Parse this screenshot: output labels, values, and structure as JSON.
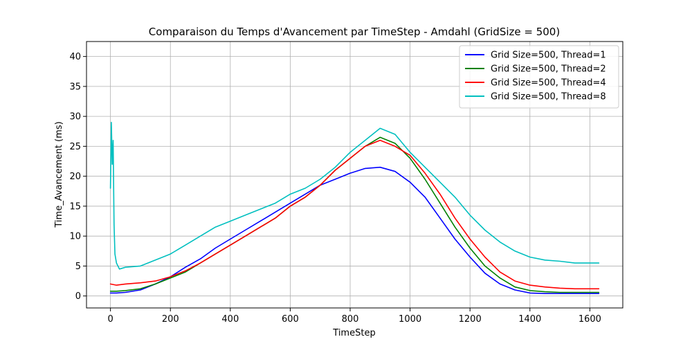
{
  "chart_data": {
    "type": "line",
    "title": "Comparaison du Temps d'Avancement par TimeStep - Amdahl (GridSize = 500)",
    "xlabel": "TimeStep",
    "ylabel": "Time_Avancement (ms)",
    "xlim": [
      -80,
      1710
    ],
    "ylim": [
      -2,
      42.5
    ],
    "xticks": [
      0,
      200,
      400,
      600,
      800,
      1000,
      1200,
      1400,
      1600
    ],
    "yticks": [
      0,
      5,
      10,
      15,
      20,
      25,
      30,
      35,
      40
    ],
    "xtick_labels": [
      "0",
      "200",
      "400",
      "600",
      "800",
      "1000",
      "1200",
      "1400",
      "1600"
    ],
    "ytick_labels": [
      "0",
      "5",
      "10",
      "15",
      "20",
      "25",
      "30",
      "35",
      "40"
    ],
    "grid": true,
    "legend_position": "top-right",
    "series": [
      {
        "name": "Grid Size=500, Thread=1",
        "color": "#0000ff",
        "x": [
          0,
          20,
          50,
          100,
          150,
          200,
          250,
          300,
          350,
          400,
          450,
          500,
          550,
          600,
          650,
          700,
          750,
          800,
          850,
          900,
          950,
          1000,
          1050,
          1100,
          1150,
          1200,
          1250,
          1300,
          1350,
          1400,
          1450,
          1500,
          1550,
          1600,
          1630
        ],
        "y": [
          0.5,
          0.5,
          0.6,
          1.0,
          2.0,
          3.2,
          4.8,
          6.2,
          8.0,
          9.5,
          11.0,
          12.5,
          14.0,
          15.5,
          17.0,
          18.5,
          19.5,
          20.5,
          21.3,
          21.5,
          20.8,
          19.0,
          16.5,
          13.0,
          9.5,
          6.5,
          3.8,
          2.0,
          1.0,
          0.5,
          0.4,
          0.4,
          0.4,
          0.4,
          0.4
        ]
      },
      {
        "name": "Grid Size=500, Thread=2",
        "color": "#008000",
        "x": [
          0,
          20,
          50,
          100,
          150,
          200,
          250,
          300,
          350,
          400,
          450,
          500,
          550,
          600,
          650,
          700,
          750,
          800,
          850,
          900,
          950,
          1000,
          1050,
          1100,
          1150,
          1200,
          1250,
          1300,
          1350,
          1400,
          1450,
          1500,
          1550,
          1600,
          1630
        ],
        "y": [
          0.8,
          0.8,
          0.9,
          1.2,
          2.0,
          3.0,
          4.0,
          5.5,
          7.0,
          8.5,
          10.0,
          11.5,
          13.0,
          15.0,
          16.5,
          18.5,
          21.0,
          23.0,
          25.0,
          26.5,
          25.5,
          23.0,
          19.5,
          15.5,
          11.5,
          8.0,
          5.0,
          3.0,
          1.5,
          0.9,
          0.7,
          0.6,
          0.6,
          0.6,
          0.6
        ]
      },
      {
        "name": "Grid Size=500, Thread=4",
        "color": "#ff0000",
        "x": [
          0,
          20,
          50,
          100,
          150,
          200,
          250,
          300,
          350,
          400,
          450,
          500,
          550,
          600,
          650,
          700,
          750,
          800,
          850,
          900,
          950,
          1000,
          1050,
          1100,
          1150,
          1200,
          1250,
          1300,
          1350,
          1400,
          1450,
          1500,
          1550,
          1600,
          1630
        ],
        "y": [
          2.0,
          1.8,
          2.0,
          2.2,
          2.5,
          3.2,
          4.2,
          5.5,
          7.0,
          8.5,
          10.0,
          11.5,
          13.0,
          15.0,
          16.5,
          18.5,
          21.0,
          23.0,
          25.0,
          26.0,
          25.0,
          23.5,
          20.5,
          17.0,
          13.0,
          9.5,
          6.5,
          4.0,
          2.5,
          1.8,
          1.5,
          1.3,
          1.2,
          1.2,
          1.2
        ]
      },
      {
        "name": "Grid Size=500, Thread=8",
        "color": "#00bfbf",
        "x": [
          0,
          3,
          6,
          9,
          12,
          15,
          20,
          30,
          50,
          100,
          150,
          200,
          250,
          300,
          350,
          400,
          450,
          500,
          550,
          600,
          650,
          700,
          750,
          800,
          850,
          900,
          950,
          1000,
          1050,
          1100,
          1150,
          1200,
          1250,
          1300,
          1350,
          1400,
          1450,
          1500,
          1550,
          1600,
          1630
        ],
        "y": [
          18,
          29,
          22,
          26,
          12,
          7,
          5.5,
          4.5,
          4.8,
          5.0,
          6.0,
          7.0,
          8.5,
          10.0,
          11.5,
          12.5,
          13.5,
          14.5,
          15.5,
          17.0,
          18.0,
          19.5,
          21.5,
          24.0,
          26.0,
          28.0,
          27.0,
          24.0,
          21.5,
          19.0,
          16.5,
          13.5,
          11.0,
          9.0,
          7.5,
          6.5,
          6.0,
          5.8,
          5.5,
          5.5,
          5.5
        ]
      }
    ]
  }
}
